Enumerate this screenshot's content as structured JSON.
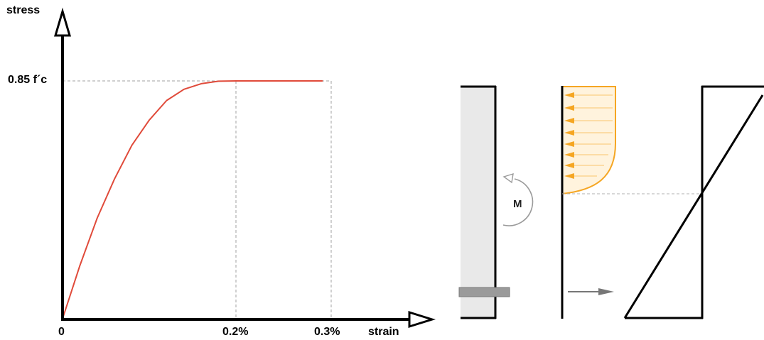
{
  "chart": {
    "y_axis_label": "stress",
    "x_axis_label": "strain",
    "peak_label": "0.85 f´c",
    "x_tick_labels": [
      "0",
      "0.2%",
      "0.3%"
    ]
  },
  "chart_data": {
    "type": "line",
    "xlabel": "strain",
    "ylabel": "stress",
    "x_ticks": [
      "0",
      "0.2%",
      "0.3%"
    ],
    "y_ticks": [
      "0.85 f´c"
    ],
    "series": [
      {
        "x": [
          0,
          0.0002,
          0.0004,
          0.0006,
          0.0008,
          0.001,
          0.0012,
          0.0014,
          0.0016,
          0.0018,
          0.002,
          0.0025,
          0.003
        ],
        "y": [
          0,
          0.19,
          0.36,
          0.5,
          0.62,
          0.71,
          0.78,
          0.82,
          0.84,
          0.849,
          0.85,
          0.85,
          0.85
        ]
      }
    ],
    "xlim": [
      0,
      0.0037
    ],
    "ylim": [
      0,
      0.95
    ],
    "grid": false
  },
  "diagram": {
    "moment_label": "M"
  },
  "colors": {
    "curve": "#e04a3a",
    "stress_block_fill": "#fff3dd",
    "stress_block_edge": "#f5a623",
    "arrows": "#f5a623",
    "column_fill": "#e9e9e9",
    "rebar_fill": "#9a9a9a",
    "guide_lines": "#a0a0a0",
    "tension_arrow": "#777777"
  }
}
